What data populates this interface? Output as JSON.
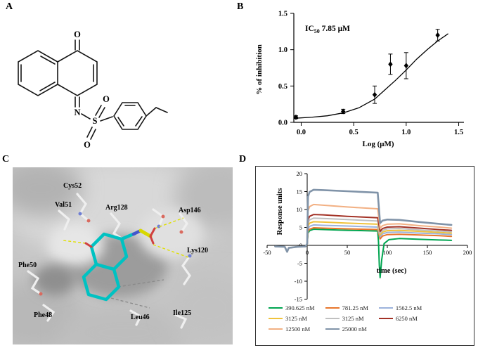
{
  "panels": {
    "a": "A",
    "b": "B",
    "c": "C",
    "d": "D"
  },
  "panel_a": {
    "atoms": {
      "carbonyl_o": "O",
      "imine_n": "N",
      "sulfur": "S",
      "sulfonyl_o_top": "O",
      "sulfonyl_o_bottom": "O"
    }
  },
  "panel_c": {
    "residues": [
      "Cys52",
      "Val51",
      "Arg128",
      "Asp146",
      "Lys120",
      "Phe50",
      "Phe48",
      "Leu46",
      "Ile125"
    ]
  },
  "chart_data": [
    {
      "panel": "B",
      "type": "scatter",
      "annotation": "IC50 7.85 μM",
      "annotation_parts": {
        "prefix": "IC",
        "sub": "50",
        "suffix": " 7.85 μM"
      },
      "xlabel": "Log (μM)",
      "ylabel": "% of inhibition",
      "xlim": [
        -0.07,
        1.55
      ],
      "ylim": [
        0,
        1.5
      ],
      "xticks": [
        0.0,
        0.5,
        1.0,
        1.5
      ],
      "yticks": [
        0.0,
        0.5,
        1.0,
        1.5
      ],
      "points": {
        "x": [
          -0.05,
          0.4,
          0.7,
          0.85,
          1.0,
          1.3
        ],
        "y": [
          0.07,
          0.15,
          0.38,
          0.8,
          0.78,
          1.2
        ],
        "yerr": [
          0.02,
          0.03,
          0.12,
          0.14,
          0.18,
          0.08
        ]
      },
      "fit_curve": {
        "x": [
          -0.07,
          0.1,
          0.25,
          0.4,
          0.55,
          0.7,
          0.8,
          0.9,
          1.0,
          1.1,
          1.2,
          1.3,
          1.4
        ],
        "y": [
          0.055,
          0.07,
          0.09,
          0.13,
          0.2,
          0.32,
          0.45,
          0.58,
          0.72,
          0.87,
          1.0,
          1.12,
          1.22
        ]
      }
    },
    {
      "panel": "D",
      "type": "line",
      "xlabel": "time (sec)",
      "ylabel": "Response units",
      "xlim": [
        -50,
        200
      ],
      "ylim": [
        -15,
        20
      ],
      "xticks": [
        -50,
        0,
        50,
        100,
        150,
        200
      ],
      "yticks": [
        -15,
        -10,
        -5,
        0,
        5,
        10,
        15,
        20
      ],
      "series": [
        {
          "name": "390.625 nM",
          "color": "#00a550",
          "points": [
            [
              -40,
              -0.3
            ],
            [
              -28,
              -0.4
            ],
            [
              -25,
              -1.8
            ],
            [
              -23,
              -0.7
            ],
            [
              -12,
              -0.4
            ],
            [
              -2,
              -0.3
            ],
            [
              0,
              0.2
            ],
            [
              1,
              3.4
            ],
            [
              3,
              4.1
            ],
            [
              8,
              4.5
            ],
            [
              20,
              4.4
            ],
            [
              50,
              4.2
            ],
            [
              88,
              4.0
            ],
            [
              89,
              1.0
            ],
            [
              90,
              -5.5
            ],
            [
              91,
              -9.0
            ],
            [
              93,
              -4.0
            ],
            [
              96,
              0.5
            ],
            [
              102,
              1.6
            ],
            [
              115,
              1.9
            ],
            [
              140,
              1.7
            ],
            [
              165,
              1.5
            ],
            [
              180,
              1.4
            ]
          ]
        },
        {
          "name": "781.25 nM",
          "color": "#e8762c",
          "points": [
            [
              -40,
              -0.3
            ],
            [
              -28,
              -0.4
            ],
            [
              -25,
              -1.8
            ],
            [
              -23,
              -0.7
            ],
            [
              -12,
              -0.4
            ],
            [
              -2,
              -0.3
            ],
            [
              0,
              0.2
            ],
            [
              1,
              3.9
            ],
            [
              3,
              4.5
            ],
            [
              8,
              4.9
            ],
            [
              20,
              4.8
            ],
            [
              50,
              4.6
            ],
            [
              88,
              4.4
            ],
            [
              91,
              1.8
            ],
            [
              94,
              2.6
            ],
            [
              100,
              3.0
            ],
            [
              115,
              3.1
            ],
            [
              140,
              2.9
            ],
            [
              165,
              2.7
            ],
            [
              180,
              2.5
            ]
          ]
        },
        {
          "name": "1562.5 nM",
          "color": "#9cb3dc",
          "points": [
            [
              -40,
              -0.3
            ],
            [
              -28,
              -0.4
            ],
            [
              -25,
              -1.8
            ],
            [
              -23,
              -0.7
            ],
            [
              -12,
              -0.4
            ],
            [
              -2,
              -0.3
            ],
            [
              0,
              0.3
            ],
            [
              1,
              4.6
            ],
            [
              3,
              5.3
            ],
            [
              8,
              5.7
            ],
            [
              20,
              5.6
            ],
            [
              50,
              5.4
            ],
            [
              88,
              5.1
            ],
            [
              91,
              2.4
            ],
            [
              94,
              3.2
            ],
            [
              100,
              3.6
            ],
            [
              115,
              3.7
            ],
            [
              140,
              3.4
            ],
            [
              165,
              3.2
            ],
            [
              180,
              3.0
            ]
          ]
        },
        {
          "name": "3125 nM",
          "color": "#f0c33c",
          "points": [
            [
              -40,
              -0.3
            ],
            [
              -28,
              -0.4
            ],
            [
              -25,
              -1.8
            ],
            [
              -23,
              -0.7
            ],
            [
              -12,
              -0.4
            ],
            [
              -2,
              -0.3
            ],
            [
              0,
              0.3
            ],
            [
              1,
              5.4
            ],
            [
              3,
              6.2
            ],
            [
              8,
              6.6
            ],
            [
              20,
              6.5
            ],
            [
              50,
              6.2
            ],
            [
              88,
              5.9
            ],
            [
              91,
              2.9
            ],
            [
              94,
              3.7
            ],
            [
              100,
              4.1
            ],
            [
              115,
              4.2
            ],
            [
              140,
              3.9
            ],
            [
              165,
              3.6
            ],
            [
              180,
              3.4
            ]
          ]
        },
        {
          "name": "3125 nM",
          "color": "#c0c0c0",
          "points": [
            [
              -40,
              -0.3
            ],
            [
              -28,
              -0.4
            ],
            [
              -25,
              -1.8
            ],
            [
              -23,
              -0.7
            ],
            [
              -12,
              -0.4
            ],
            [
              -2,
              -0.3
            ],
            [
              0,
              0.3
            ],
            [
              1,
              6.2
            ],
            [
              3,
              7.1
            ],
            [
              8,
              7.6
            ],
            [
              20,
              7.5
            ],
            [
              50,
              7.2
            ],
            [
              88,
              6.8
            ],
            [
              91,
              3.4
            ],
            [
              94,
              4.2
            ],
            [
              100,
              4.6
            ],
            [
              115,
              4.7
            ],
            [
              140,
              4.3
            ],
            [
              165,
              4.0
            ],
            [
              180,
              3.8
            ]
          ]
        },
        {
          "name": "6250 nM",
          "color": "#a33226",
          "points": [
            [
              -40,
              -0.3
            ],
            [
              -28,
              -0.4
            ],
            [
              -25,
              -1.8
            ],
            [
              -23,
              -0.7
            ],
            [
              -12,
              -0.4
            ],
            [
              -2,
              -0.3
            ],
            [
              0,
              0.4
            ],
            [
              1,
              7.1
            ],
            [
              3,
              8.1
            ],
            [
              8,
              8.6
            ],
            [
              20,
              8.5
            ],
            [
              50,
              8.1
            ],
            [
              88,
              7.7
            ],
            [
              91,
              3.9
            ],
            [
              94,
              4.7
            ],
            [
              100,
              5.1
            ],
            [
              115,
              5.2
            ],
            [
              140,
              4.8
            ],
            [
              165,
              4.4
            ],
            [
              180,
              4.2
            ]
          ]
        },
        {
          "name": "12500 nM",
          "color": "#f2b083",
          "points": [
            [
              -40,
              -0.3
            ],
            [
              -28,
              -0.4
            ],
            [
              -25,
              -1.8
            ],
            [
              -23,
              -0.7
            ],
            [
              -12,
              -0.4
            ],
            [
              -2,
              -0.3
            ],
            [
              0,
              0.4
            ],
            [
              1,
              9.6
            ],
            [
              3,
              10.8
            ],
            [
              8,
              11.4
            ],
            [
              20,
              11.2
            ],
            [
              50,
              10.7
            ],
            [
              88,
              10.2
            ],
            [
              91,
              4.8
            ],
            [
              94,
              5.5
            ],
            [
              100,
              5.9
            ],
            [
              115,
              6.0
            ],
            [
              140,
              5.5
            ],
            [
              165,
              5.1
            ],
            [
              180,
              4.8
            ]
          ]
        },
        {
          "name": "25000 nM",
          "color": "#8093a8",
          "points": [
            [
              -40,
              -0.3
            ],
            [
              -28,
              -0.4
            ],
            [
              -25,
              -1.8
            ],
            [
              -23,
              -0.7
            ],
            [
              -12,
              -0.4
            ],
            [
              -2,
              -0.3
            ],
            [
              0,
              0.5
            ],
            [
              1,
              13.6
            ],
            [
              3,
              14.9
            ],
            [
              8,
              15.5
            ],
            [
              20,
              15.4
            ],
            [
              50,
              15.1
            ],
            [
              88,
              14.7
            ],
            [
              91,
              6.2
            ],
            [
              94,
              6.9
            ],
            [
              100,
              7.2
            ],
            [
              115,
              7.1
            ],
            [
              140,
              6.5
            ],
            [
              165,
              6.0
            ],
            [
              180,
              5.7
            ]
          ]
        }
      ],
      "legend_position": "bottom"
    }
  ]
}
